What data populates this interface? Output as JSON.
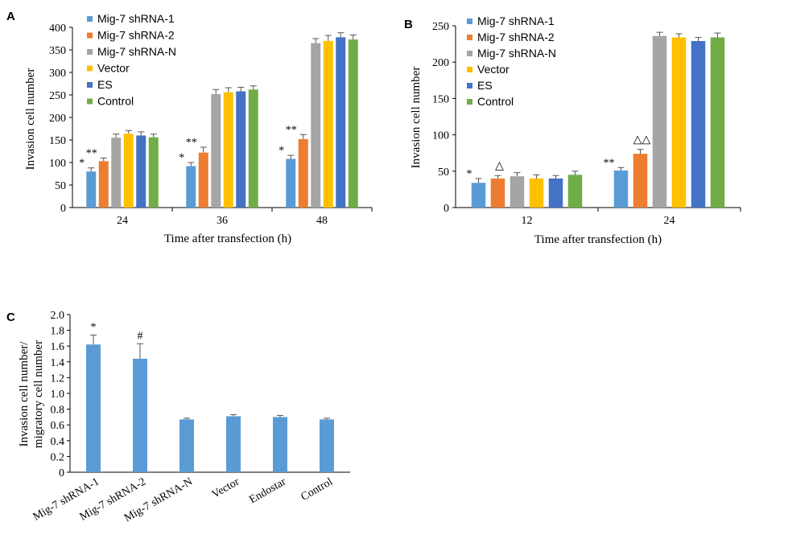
{
  "chart_data": [
    {
      "panel": "A",
      "type": "bar",
      "categories": [
        "24",
        "36",
        "48"
      ],
      "xlabel": "Time after transfection (h)",
      "ylabel": "Invasion cell number",
      "ylim": [
        0,
        400
      ],
      "yticks": [
        0,
        50,
        100,
        150,
        200,
        250,
        300,
        350,
        400
      ],
      "legend_position": "top-left",
      "series": [
        {
          "name": "Mig-7 shRNA-1",
          "color": "#5b9bd5",
          "values": [
            80,
            92,
            108
          ],
          "errors": [
            8,
            8,
            8
          ],
          "marks": [
            "*",
            "*",
            "*"
          ]
        },
        {
          "name": "Mig-7 shRNA-2",
          "color": "#ed7d31",
          "values": [
            103,
            122,
            152
          ],
          "errors": [
            7,
            12,
            10
          ],
          "marks": [
            "**",
            "**",
            "**"
          ]
        },
        {
          "name": "Mig-7 shRNA-N",
          "color": "#a5a5a5",
          "values": [
            155,
            252,
            365
          ],
          "errors": [
            8,
            10,
            10
          ],
          "marks": [
            "",
            "",
            ""
          ]
        },
        {
          "name": "Vector",
          "color": "#ffc000",
          "values": [
            164,
            256,
            370
          ],
          "errors": [
            7,
            10,
            12
          ],
          "marks": [
            "",
            "",
            ""
          ]
        },
        {
          "name": "ES",
          "color": "#4472c4",
          "values": [
            160,
            258,
            378
          ],
          "errors": [
            8,
            9,
            10
          ],
          "marks": [
            "",
            "",
            ""
          ]
        },
        {
          "name": "Control",
          "color": "#70ad47",
          "values": [
            156,
            262,
            373
          ],
          "errors": [
            7,
            8,
            10
          ],
          "marks": [
            "",
            "",
            ""
          ]
        }
      ]
    },
    {
      "panel": "B",
      "type": "bar",
      "categories": [
        "12",
        "24"
      ],
      "xlabel": "Time after transfection (h)",
      "ylabel": "Invasion cell number",
      "ylim": [
        0,
        250
      ],
      "yticks": [
        0,
        50,
        100,
        150,
        200,
        250
      ],
      "legend_position": "top-left",
      "series": [
        {
          "name": "Mig-7 shRNA-1",
          "color": "#5b9bd5",
          "values": [
            34,
            51
          ],
          "errors": [
            6,
            4
          ],
          "marks": [
            "*",
            "**"
          ]
        },
        {
          "name": "Mig-7 shRNA-2",
          "color": "#ed7d31",
          "values": [
            40,
            74
          ],
          "errors": [
            4,
            6
          ],
          "marks": [
            "△",
            "△△"
          ]
        },
        {
          "name": "Mig-7 shRNA-N",
          "color": "#a5a5a5",
          "values": [
            43,
            236
          ],
          "errors": [
            5,
            5
          ],
          "marks": [
            "",
            ""
          ]
        },
        {
          "name": "Vector",
          "color": "#ffc000",
          "values": [
            40,
            234
          ],
          "errors": [
            5,
            5
          ],
          "marks": [
            "",
            ""
          ]
        },
        {
          "name": "ES",
          "color": "#4472c4",
          "values": [
            40,
            229
          ],
          "errors": [
            4,
            5
          ],
          "marks": [
            "",
            ""
          ]
        },
        {
          "name": "Control",
          "color": "#70ad47",
          "values": [
            45,
            234
          ],
          "errors": [
            5,
            6
          ],
          "marks": [
            "",
            ""
          ]
        }
      ]
    },
    {
      "panel": "C",
      "type": "bar",
      "categories": [
        "Mig-7 shRNA-1",
        "Mig-7 shRNA-2",
        "Mig-7 shRNA-N",
        "Vector",
        "Endostar",
        "Control"
      ],
      "xlabel": "",
      "ylabel_lines": [
        "Invasion cell number/",
        "migratory cell number"
      ],
      "ylim": [
        0,
        2.0
      ],
      "yticks": [
        "0",
        "0.2",
        "0.4",
        "0.6",
        "0.8",
        "1.0",
        "1.2",
        "1.4",
        "1.6",
        "1.8",
        "2.0"
      ],
      "color": "#5b9bd5",
      "values": [
        1.62,
        1.44,
        0.67,
        0.71,
        0.7,
        0.67
      ],
      "errors": [
        0.12,
        0.19,
        0.015,
        0.02,
        0.02,
        0.015
      ],
      "marks": [
        "*",
        "#",
        "",
        "",
        "",
        ""
      ]
    }
  ]
}
